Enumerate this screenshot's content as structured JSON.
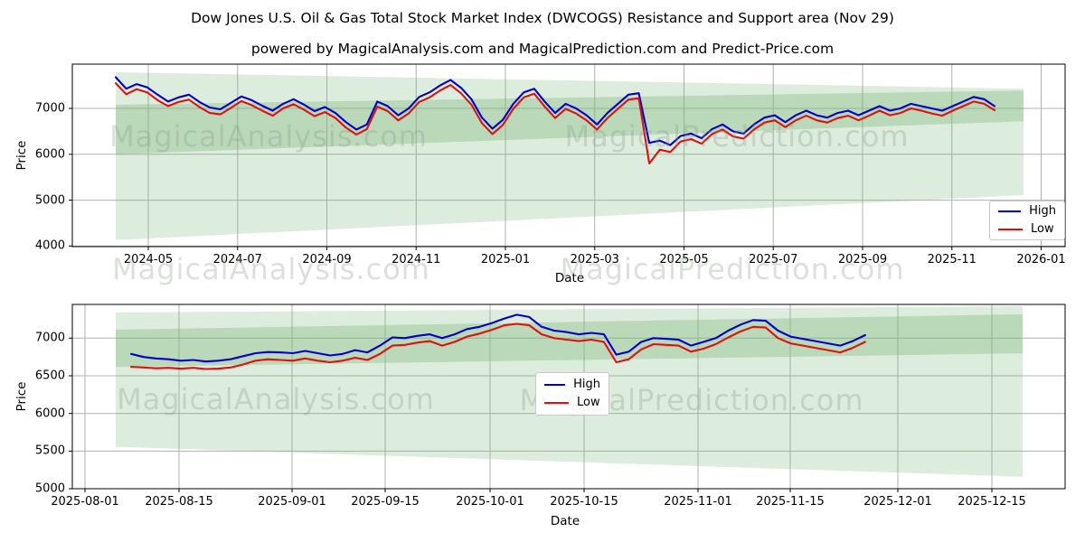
{
  "title": "Dow Jones U.S. Oil & Gas Total Stock Market Index (DWCOGS) Resistance and Support area (Nov 29)",
  "subtitle": "powered by MagicalAnalysis.com and MagicalPrediction.com and Predict-Price.com",
  "watermarks": [
    "MagicalAnalysis.com",
    "MagicalPrediction.com"
  ],
  "colors": {
    "high_line": "#0000cc",
    "low_line": "#e01010",
    "band_green": "#7ab87a",
    "grid": "#b0b0b0",
    "spine": "#000000"
  },
  "chart_data": [
    {
      "type": "line",
      "title": "",
      "xlabel": "Date",
      "ylabel": "Price",
      "x_tick_labels": [
        "2024-05",
        "2024-07",
        "2024-09",
        "2024-11",
        "2025-01",
        "2025-03",
        "2025-05",
        "2025-07",
        "2025-09",
        "2025-11",
        "2026-01"
      ],
      "y_tick_labels": [
        "7000",
        "6000",
        "5000",
        "4000"
      ],
      "ylim": [
        3990,
        7960
      ],
      "x_start": "2024-04-09",
      "x_step_days": 7,
      "grid": true,
      "legend_position": "lower right",
      "legend_entries": [
        "High",
        "Low"
      ],
      "series": [
        {
          "name": "High",
          "values": [
            7680,
            7430,
            7530,
            7460,
            7300,
            7150,
            7240,
            7300,
            7140,
            7020,
            6980,
            7120,
            7260,
            7180,
            7060,
            6950,
            7100,
            7200,
            7080,
            6940,
            7030,
            6900,
            6700,
            6540,
            6650,
            7150,
            7050,
            6850,
            7000,
            7250,
            7350,
            7500,
            7620,
            7450,
            7200,
            6800,
            6560,
            6750,
            7100,
            7350,
            7430,
            7150,
            6900,
            7100,
            7000,
            6850,
            6650,
            6900,
            7100,
            7300,
            7330,
            6250,
            6300,
            6200,
            6400,
            6450,
            6350,
            6550,
            6650,
            6500,
            6450,
            6650,
            6800,
            6850,
            6700,
            6850,
            6950,
            6850,
            6800,
            6900,
            6950,
            6850,
            6950,
            7050,
            6950,
            7000,
            7100,
            7050,
            7000,
            6950,
            7050,
            7150,
            7250,
            7200,
            7050
          ]
        },
        {
          "name": "Low",
          "values": [
            7550,
            7310,
            7420,
            7350,
            7180,
            7050,
            7140,
            7190,
            7030,
            6900,
            6870,
            7010,
            7160,
            7070,
            6950,
            6840,
            7000,
            7090,
            6970,
            6830,
            6920,
            6790,
            6580,
            6430,
            6550,
            7040,
            6940,
            6740,
            6890,
            7140,
            7240,
            7390,
            7510,
            7330,
            7080,
            6680,
            6440,
            6640,
            6990,
            7240,
            7320,
            7040,
            6790,
            6990,
            6890,
            6740,
            6540,
            6790,
            6990,
            7190,
            7220,
            5800,
            6100,
            6050,
            6280,
            6330,
            6230,
            6440,
            6540,
            6390,
            6340,
            6540,
            6690,
            6740,
            6590,
            6740,
            6840,
            6740,
            6690,
            6790,
            6840,
            6740,
            6840,
            6950,
            6850,
            6900,
            7000,
            6950,
            6890,
            6840,
            6950,
            7050,
            7150,
            7100,
            6960
          ]
        }
      ],
      "support_resistance_bands": [
        {
          "shade": "light",
          "top_start": 7790,
          "top_end": 7430,
          "bottom_start": 4130,
          "bottom_end": 5110
        },
        {
          "shade": "medium",
          "top_start": 7080,
          "top_end": 7390,
          "bottom_start": 6000,
          "bottom_end": 6720
        }
      ]
    },
    {
      "type": "line",
      "title": "",
      "xlabel": "Date",
      "ylabel": "Price",
      "x_tick_labels": [
        "2025-08-01",
        "2025-08-15",
        "2025-09-01",
        "2025-09-15",
        "2025-10-01",
        "2025-10-15",
        "2025-11-01",
        "2025-11-15",
        "2025-12-01",
        "2025-12-15"
      ],
      "y_tick_labels": [
        "7000",
        "6500",
        "6000",
        "5500",
        "5000"
      ],
      "ylim": [
        5000,
        7460
      ],
      "x_start": "2025-08-05",
      "x_step_days": 2,
      "grid": true,
      "legend_position": "center",
      "legend_entries": [
        "High",
        "Low"
      ],
      "series": [
        {
          "name": "High",
          "values": [
            6790,
            6750,
            6730,
            6720,
            6700,
            6710,
            6690,
            6700,
            6720,
            6760,
            6800,
            6815,
            6810,
            6800,
            6830,
            6800,
            6770,
            6790,
            6840,
            6810,
            6900,
            7010,
            7000,
            7030,
            7050,
            7000,
            7050,
            7120,
            7150,
            7200,
            7260,
            7310,
            7280,
            7150,
            7100,
            7080,
            7050,
            7070,
            7050,
            6780,
            6820,
            6950,
            7000,
            6990,
            6980,
            6900,
            6950,
            7000,
            7100,
            7180,
            7240,
            7230,
            7100,
            7020,
            6990,
            6960,
            6930,
            6900,
            6960,
            7040
          ]
        },
        {
          "name": "Low",
          "values": [
            6620,
            6610,
            6600,
            6605,
            6595,
            6605,
            6590,
            6595,
            6610,
            6650,
            6700,
            6720,
            6710,
            6700,
            6730,
            6700,
            6680,
            6700,
            6740,
            6710,
            6790,
            6900,
            6910,
            6940,
            6960,
            6900,
            6950,
            7020,
            7060,
            7110,
            7170,
            7190,
            7170,
            7050,
            7000,
            6980,
            6960,
            6980,
            6950,
            6680,
            6720,
            6850,
            6920,
            6910,
            6900,
            6820,
            6860,
            6920,
            7010,
            7090,
            7150,
            7140,
            7000,
            6930,
            6900,
            6870,
            6840,
            6810,
            6870,
            6950
          ]
        }
      ],
      "support_resistance_bands": [
        {
          "shade": "light",
          "top_start": 7340,
          "top_end": 7424,
          "bottom_start": 5557,
          "bottom_end": 5159
        },
        {
          "shade": "medium",
          "top_start": 7111,
          "top_end": 7316,
          "bottom_start": 6617,
          "bottom_end": 6798
        }
      ]
    }
  ]
}
